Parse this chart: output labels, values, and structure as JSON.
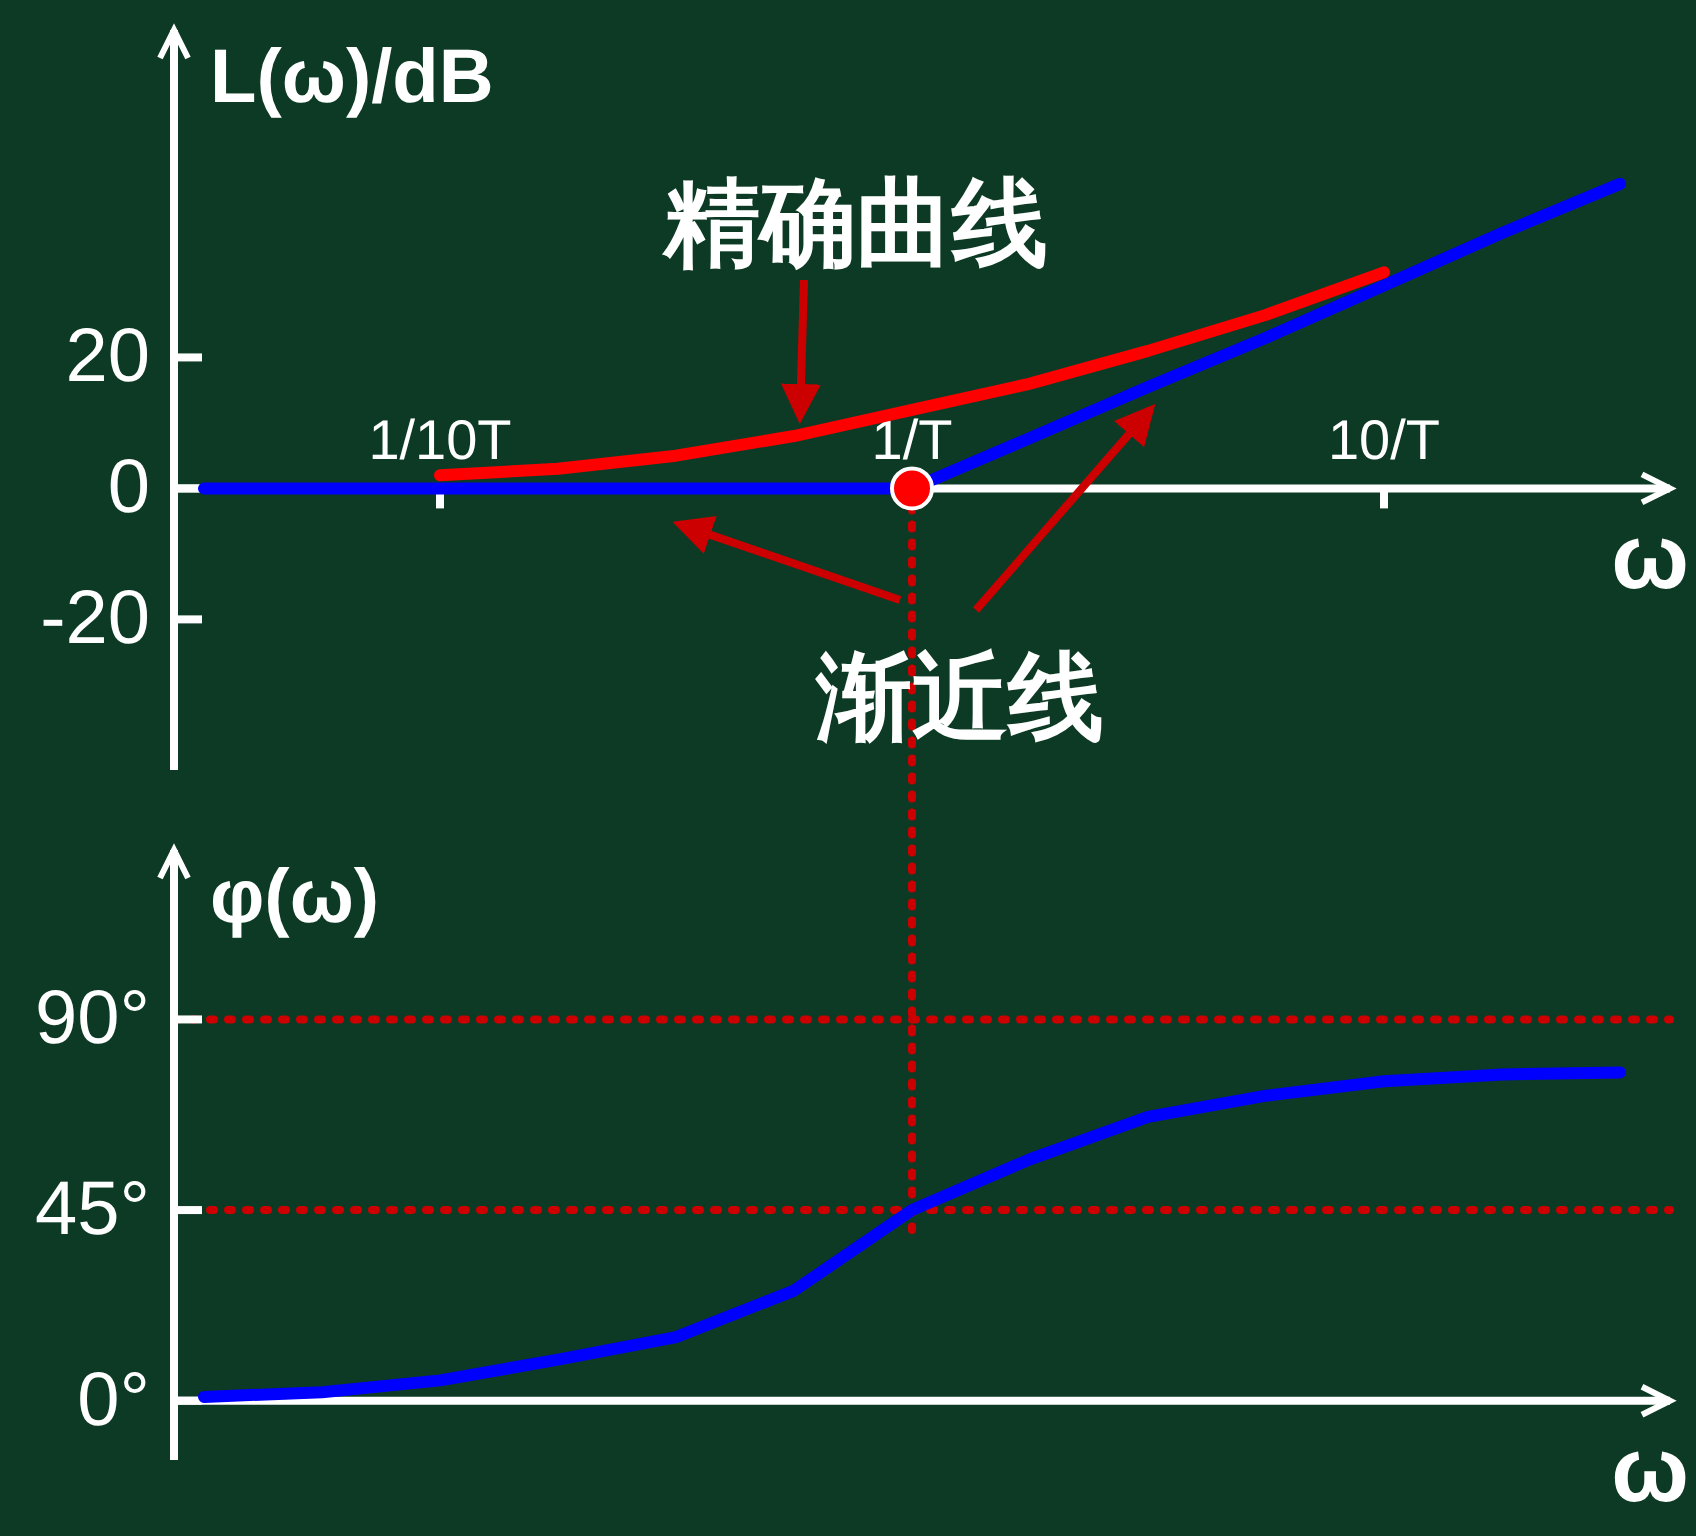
{
  "chart_data": [
    {
      "type": "line",
      "ylabel": "L(ω)/dB",
      "xlabel": "ω",
      "ylim": [
        -43,
        70
      ],
      "categories": [
        null,
        null,
        "1/10T",
        null,
        null,
        null,
        "1/T",
        null,
        null,
        null,
        "10/T",
        null,
        null
      ],
      "yticks": [
        -20,
        0,
        20
      ],
      "series": [
        {
          "color": "#0000ff",
          "values": [
            0,
            0,
            0,
            0,
            0,
            0,
            0,
            7.7,
            15.5,
            23,
            31,
            39,
            46.5
          ]
        },
        {
          "color": "#ff0000",
          "values": [
            null,
            null,
            2,
            3,
            5,
            8,
            12,
            16,
            21,
            26.5,
            33,
            null,
            null
          ]
        },
        {
          "type": "scatter",
          "color": "#ff0000",
          "x": [
            "1/T"
          ],
          "values": [
            0
          ],
          "marker": "circle"
        }
      ],
      "ref_lines": [
        {
          "axis": "x",
          "value": "1/T",
          "color": "#cc0000",
          "line_style": "dotted"
        }
      ],
      "annotations": [
        "精确曲线",
        "渐近线"
      ]
    },
    {
      "type": "line",
      "ylabel": "φ(ω)",
      "xlabel": "ω",
      "tick_labels": "y",
      "categories": [
        null,
        null,
        null,
        null,
        null,
        null,
        null,
        null,
        null,
        null,
        null,
        null,
        null
      ],
      "ylim": [
        -14,
        130
      ],
      "yticks": [
        {
          "value": 0,
          "label": "0°"
        },
        {
          "value": 45,
          "label": "45°"
        },
        {
          "value": 90,
          "label": "90°"
        }
      ],
      "series": [
        {
          "color": "#0000ff",
          "values": [
            0.9,
            2,
            4.8,
            9.7,
            15,
            26,
            45,
            57,
            67,
            72,
            75.4,
            77,
            77.5
          ]
        }
      ],
      "ref_lines": [
        {
          "axis": "y",
          "value": 90,
          "color": "#cc0000",
          "line_style": "dotted"
        },
        {
          "axis": "y",
          "value": 45,
          "color": "#cc0000",
          "line_style": "dotted"
        }
      ]
    }
  ]
}
